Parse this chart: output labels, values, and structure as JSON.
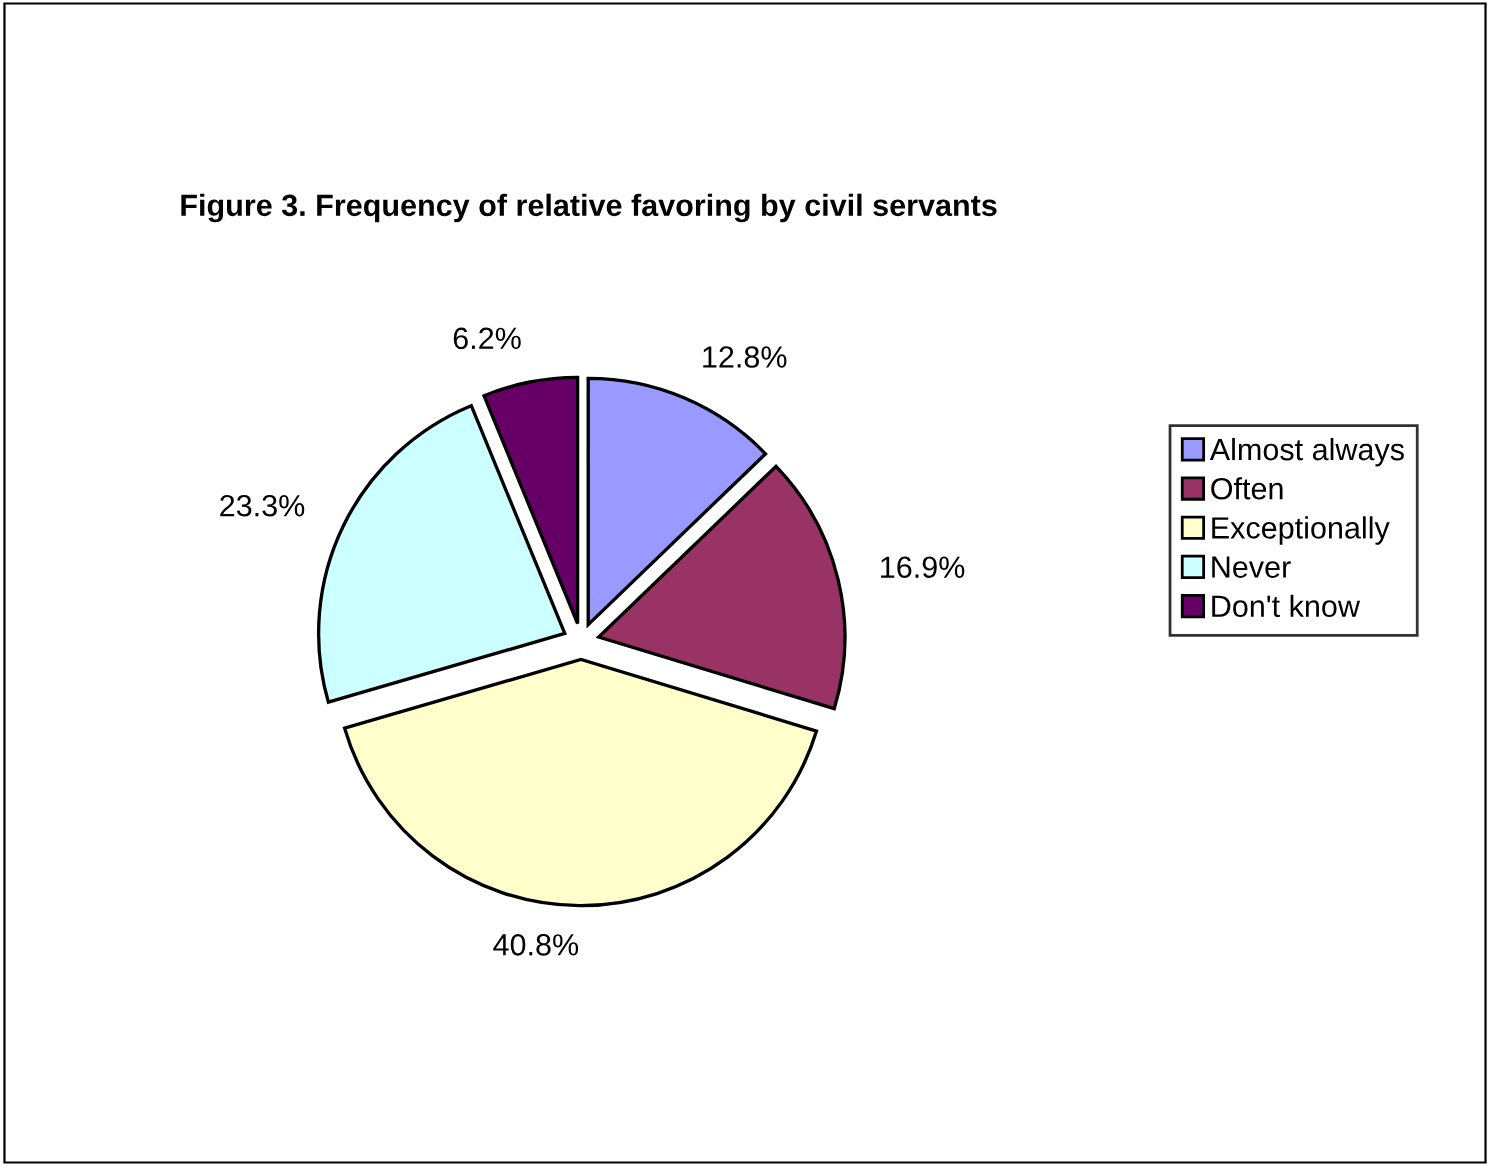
{
  "chart_data": {
    "type": "pie",
    "title": "Figure 3. Frequency of relative favoring by civil servants",
    "categories": [
      "Almost always",
      "Often",
      "Exceptionally",
      "Never",
      "Don't know"
    ],
    "values": [
      12.8,
      16.9,
      40.8,
      23.3,
      6.2
    ],
    "colors": [
      "#9999ff",
      "#993366",
      "#ffffcc",
      "#ccffff",
      "#660066"
    ],
    "value_labels": [
      "12.8%",
      "16.9%",
      "40.8%",
      "23.3%",
      "6.2%"
    ],
    "legend": "right"
  }
}
